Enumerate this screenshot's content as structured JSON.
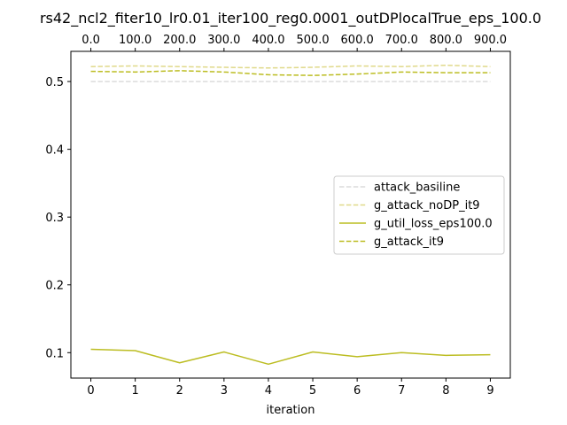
{
  "chart_data": {
    "type": "line",
    "title": "rs42_ncl2_fiter10_lr0.01_iter100_reg0.0001_outDPlocalTrue_eps_100.0",
    "xlabel": "iteration",
    "ylabel": "",
    "x": [
      0,
      1,
      2,
      3,
      4,
      5,
      6,
      7,
      8,
      9
    ],
    "xlim": [
      -0.45,
      9.45
    ],
    "ylim": [
      0.0625,
      0.5445
    ],
    "yticks": [
      0.1,
      0.2,
      0.3,
      0.4,
      0.5
    ],
    "ytick_labels": [
      "0.1",
      "0.2",
      "0.3",
      "0.4",
      "0.5"
    ],
    "xticks": [
      0,
      1,
      2,
      3,
      4,
      5,
      6,
      7,
      8,
      9
    ],
    "xtick_labels": [
      "0",
      "1",
      "2",
      "3",
      "4",
      "5",
      "6",
      "7",
      "8",
      "9"
    ],
    "top_xticks": [
      0,
      1,
      2,
      3,
      4,
      5,
      6,
      7,
      8,
      9
    ],
    "top_xtick_labels": [
      "0.0",
      "100.0",
      "200.0",
      "300.0",
      "400.0",
      "500.0",
      "600.0",
      "700.0",
      "800.0",
      "900.0"
    ],
    "grid": false,
    "legend_position": "center-right",
    "series": [
      {
        "name": "attack_basiline",
        "color": "#dcdcdc",
        "style": "dashed",
        "values": [
          0.5,
          0.5,
          0.5,
          0.5,
          0.5,
          0.5,
          0.5,
          0.5,
          0.5,
          0.5
        ]
      },
      {
        "name": "g_attack_noDP_it9",
        "color": "#e0d98a",
        "style": "dashed",
        "values": [
          0.522,
          0.523,
          0.522,
          0.521,
          0.52,
          0.521,
          0.523,
          0.522,
          0.524,
          0.522
        ]
      },
      {
        "name": "g_util_loss_eps100.0",
        "color": "#bcbd22",
        "style": "solid",
        "values": [
          0.105,
          0.103,
          0.085,
          0.101,
          0.083,
          0.101,
          0.094,
          0.1,
          0.096,
          0.097
        ]
      },
      {
        "name": "g_attack_it9",
        "color": "#bcbd22",
        "style": "dashed",
        "values": [
          0.515,
          0.514,
          0.516,
          0.514,
          0.51,
          0.509,
          0.511,
          0.514,
          0.513,
          0.513
        ]
      }
    ]
  }
}
